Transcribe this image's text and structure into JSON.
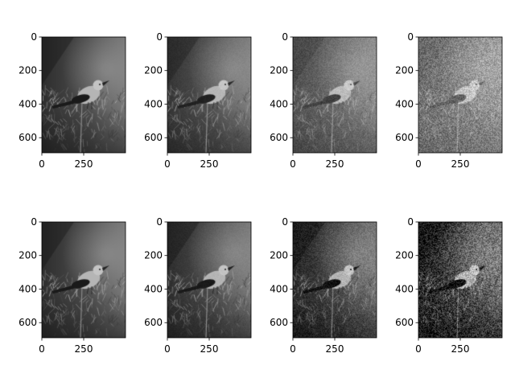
{
  "figure": {
    "grid": {
      "rows": 2,
      "cols": 4
    },
    "subject": "bird-on-pine-branch",
    "colormap": "grayscale",
    "background": "#ffffff",
    "axis_color": "#000000",
    "x_ticks": [
      "0",
      "250"
    ],
    "y_ticks": [
      "0",
      "200",
      "400",
      "600"
    ],
    "panels": [
      {
        "name": "panel-1",
        "row": 0,
        "col": 0,
        "noise": 0.0,
        "contrast": 1.0,
        "brightness": 0
      },
      {
        "name": "panel-2",
        "row": 0,
        "col": 1,
        "noise": 0.02,
        "contrast": 0.96,
        "brightness": 4
      },
      {
        "name": "panel-3",
        "row": 0,
        "col": 2,
        "noise": 0.06,
        "contrast": 0.8,
        "brightness": 18
      },
      {
        "name": "panel-4",
        "row": 0,
        "col": 3,
        "noise": 0.14,
        "contrast": 0.62,
        "brightness": 34
      },
      {
        "name": "panel-5",
        "row": 1,
        "col": 0,
        "noise": 0.0,
        "contrast": 1.0,
        "brightness": 0
      },
      {
        "name": "panel-6",
        "row": 1,
        "col": 1,
        "noise": 0.02,
        "contrast": 1.0,
        "brightness": 0
      },
      {
        "name": "panel-7",
        "row": 1,
        "col": 2,
        "noise": 0.08,
        "contrast": 1.05,
        "brightness": -4
      },
      {
        "name": "panel-8",
        "row": 1,
        "col": 3,
        "noise": 0.2,
        "contrast": 1.08,
        "brightness": -6
      }
    ]
  }
}
